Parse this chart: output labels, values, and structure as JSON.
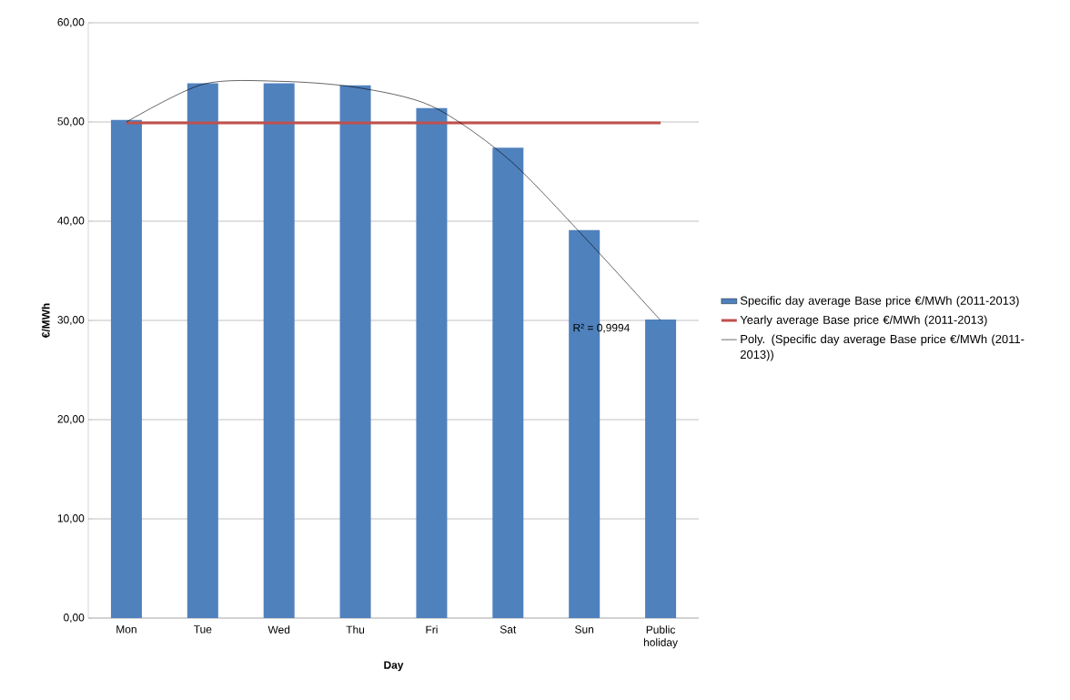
{
  "chart_data": {
    "type": "bar",
    "categories": [
      "Mon",
      "Tue",
      "Wed",
      "Thu",
      "Fri",
      "Sat",
      "Sun",
      "Public holiday"
    ],
    "series": [
      {
        "type": "bar",
        "name": "Specific day average Base price €/MWh (2011-2013)",
        "color": "#4f81bd",
        "values": [
          50.2,
          53.9,
          53.9,
          53.7,
          51.4,
          47.4,
          39.1,
          30.1
        ]
      },
      {
        "type": "line",
        "name": "Yearly average Base price €/MWh (2011-2013)",
        "color": "#c0504d",
        "values": [
          49.9,
          49.9,
          49.9,
          49.9,
          49.9,
          49.9,
          49.9,
          49.9
        ]
      },
      {
        "type": "line",
        "name": "Poly. (Specific day average Base price €/MWh (2011-2013))",
        "color": "#000000",
        "values": [
          50.0,
          53.8,
          54.1,
          53.5,
          51.6,
          46.3,
          38.4,
          30.0
        ]
      }
    ],
    "xlabel": "Day",
    "ylabel": "€/MWh",
    "ylim": [
      0,
      60
    ],
    "yticks": [
      {
        "value": 0,
        "label": "0,00"
      },
      {
        "value": 10,
        "label": "10,00"
      },
      {
        "value": 20,
        "label": "20,00"
      },
      {
        "value": 30,
        "label": "30,00"
      },
      {
        "value": 40,
        "label": "40,00"
      },
      {
        "value": 50,
        "label": "50,00"
      },
      {
        "value": 60,
        "label": "60,00"
      }
    ],
    "grid": "y",
    "legend": "right",
    "annotations": [
      "R² = 0,9994"
    ]
  }
}
